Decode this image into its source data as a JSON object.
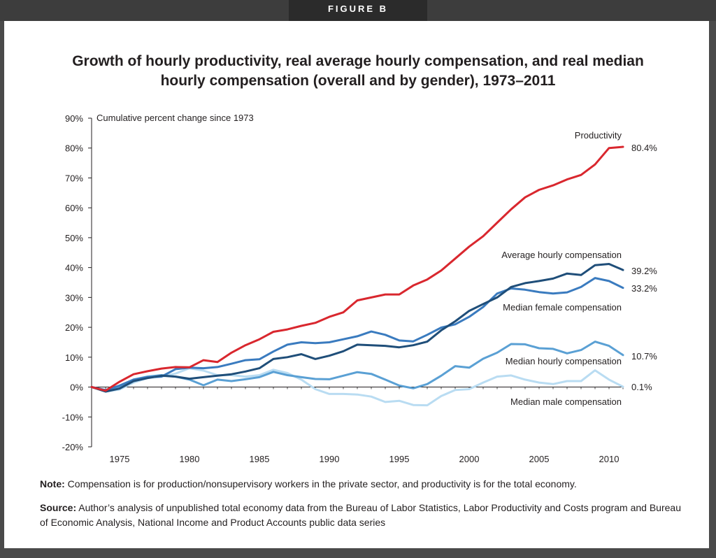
{
  "figure_label": "FIGURE B",
  "title_line1": "Growth of hourly productivity, real average hourly compensation, and real median",
  "title_line2": "hourly compensation (overall and by gender), 1973–2011",
  "note_label": "Note:",
  "note_text": " Compensation is for production/nonsupervisory workers in the private sector, and productivity is for the total economy.",
  "source_label": "Source:",
  "source_text": " Author’s analysis of unpublished total economy data from the Bureau of Labor Statistics, Labor Productivity and Costs program and Bureau of Economic Analysis, National Income and Product Accounts public data series",
  "chart_data": {
    "type": "line",
    "ylabel": "Cumulative percent change since 1973",
    "ylim": [
      -20,
      90
    ],
    "yticks": [
      -20,
      -10,
      0,
      10,
      20,
      30,
      40,
      50,
      60,
      70,
      80,
      90
    ],
    "ytick_labels": [
      "-20%",
      "-10%",
      "0%",
      "10%",
      "20%",
      "30%",
      "40%",
      "50%",
      "60%",
      "70%",
      "80%",
      "90%"
    ],
    "xlim": [
      1973,
      2011
    ],
    "xticks": [
      1975,
      1980,
      1985,
      1990,
      1995,
      2000,
      2005,
      2010
    ],
    "xtick_labels": [
      "1975",
      "1980",
      "1985",
      "1990",
      "1995",
      "2000",
      "2005",
      "2010"
    ],
    "x": [
      1973,
      1974,
      1975,
      1976,
      1977,
      1978,
      1979,
      1980,
      1981,
      1982,
      1983,
      1984,
      1985,
      1986,
      1987,
      1988,
      1989,
      1990,
      1991,
      1992,
      1993,
      1994,
      1995,
      1996,
      1997,
      1998,
      1999,
      2000,
      2001,
      2002,
      2003,
      2004,
      2005,
      2006,
      2007,
      2008,
      2009,
      2010,
      2011
    ],
    "series": [
      {
        "name": "Productivity",
        "end_label": "80.4%",
        "color": "#d9272e",
        "values": [
          0,
          -1.2,
          1.8,
          4.3,
          5.3,
          6.2,
          6.7,
          6.6,
          9.0,
          8.4,
          11.5,
          14.0,
          16.0,
          18.5,
          19.3,
          20.5,
          21.5,
          23.5,
          25.0,
          29.0,
          30.0,
          31.0,
          31.0,
          34.0,
          36.0,
          39.0,
          43.0,
          47.0,
          50.5,
          55.0,
          59.5,
          63.5,
          66.0,
          67.5,
          69.5,
          71.0,
          74.5,
          80.0,
          80.4
        ]
      },
      {
        "name": "Average hourly compensation",
        "end_label": "39.2%",
        "color": "#1f4e79",
        "values": [
          0,
          -1.5,
          -0.5,
          2.0,
          3.0,
          3.8,
          3.5,
          2.8,
          3.3,
          3.8,
          4.3,
          5.2,
          6.3,
          9.4,
          10.0,
          11.0,
          9.4,
          10.5,
          12.0,
          14.2,
          14.0,
          13.8,
          13.3,
          14.0,
          15.2,
          19.0,
          22.0,
          25.5,
          27.8,
          30.0,
          33.5,
          34.8,
          35.5,
          36.3,
          38.0,
          37.5,
          40.8,
          41.2,
          39.2
        ]
      },
      {
        "name": "Median female compensation",
        "end_label": "33.2%",
        "color": "#3a7bbf",
        "values": [
          0,
          -1.0,
          0.5,
          2.5,
          3.3,
          3.5,
          6.0,
          6.5,
          6.3,
          6.7,
          7.8,
          9.0,
          9.3,
          11.9,
          14.2,
          15.0,
          14.7,
          15.0,
          16.0,
          17.0,
          18.6,
          17.5,
          15.6,
          15.3,
          17.5,
          19.9,
          21.0,
          23.5,
          26.8,
          31.3,
          33.0,
          32.6,
          31.8,
          31.3,
          31.7,
          33.5,
          36.5,
          35.5,
          33.2
        ]
      },
      {
        "name": "Median hourly compensation",
        "end_label": "10.7%",
        "color": "#5aa0d4",
        "values": [
          0,
          -1.0,
          0.2,
          2.5,
          3.5,
          4.0,
          3.5,
          2.5,
          0.6,
          2.5,
          2.0,
          2.6,
          3.3,
          5.1,
          4.0,
          3.3,
          2.7,
          2.6,
          3.8,
          5.0,
          4.4,
          2.5,
          0.5,
          -0.4,
          1.0,
          3.8,
          7.0,
          6.5,
          9.5,
          11.5,
          14.4,
          14.3,
          13.0,
          12.8,
          11.3,
          12.4,
          15.2,
          13.8,
          10.7
        ]
      },
      {
        "name": "Median male compensation",
        "end_label": "0.1%",
        "color": "#b9dcf2",
        "values": [
          0,
          -1.5,
          -0.8,
          1.5,
          3.0,
          3.5,
          4.5,
          6.3,
          5.5,
          4.0,
          4.0,
          3.5,
          4.0,
          5.8,
          4.7,
          2.5,
          -0.7,
          -2.3,
          -2.3,
          -2.5,
          -3.2,
          -5.0,
          -4.6,
          -6.0,
          -6.1,
          -3.0,
          -1.0,
          -0.7,
          1.5,
          3.5,
          3.9,
          2.5,
          1.5,
          1.0,
          2.0,
          2.0,
          5.6,
          2.5,
          0.1
        ]
      }
    ]
  }
}
